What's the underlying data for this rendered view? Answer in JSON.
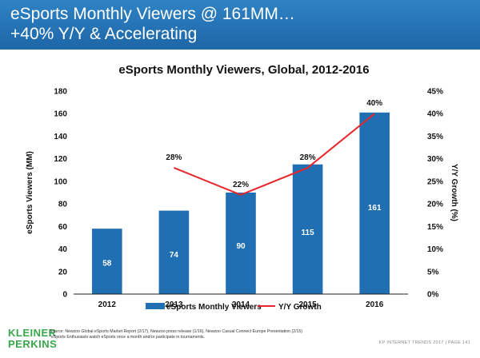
{
  "header": {
    "line1": "eSports Monthly Viewers @ 161MM…",
    "line2": "+40% Y/Y & Accelerating"
  },
  "footer": {
    "logo_line1": "KLEINER",
    "logo_line2": "PERKINS",
    "source_line1": "Source: Newzoo Global eSports Market Report (2/17), Newzoo press release (1/16), Newzoo Casual Connect Europe Presentation (2/15)",
    "source_line2": "*eSports Enthusiasts watch eSports once a month and/or participate in tournaments.",
    "page_label": "KP INTERNET TRENDS 2017  |  PAGE 141"
  },
  "colors": {
    "header": "#1f6fb2",
    "bar": "#1f6fb2",
    "line": "#e8252a",
    "logo": "#3aa64a"
  },
  "chart_data": {
    "type": "bar",
    "title": "eSports Monthly Viewers, Global, 2012-2016",
    "categories": [
      "2012",
      "2013",
      "2014",
      "2015",
      "2016"
    ],
    "series": [
      {
        "name": "eSports Monthly Viewers",
        "type": "bar",
        "axis": "left",
        "values": [
          58,
          74,
          90,
          115,
          161
        ],
        "labels": [
          "58",
          "74",
          "90",
          "115",
          "161"
        ]
      },
      {
        "name": "Y/Y Growth",
        "type": "line",
        "axis": "right",
        "x": [
          "2013",
          "2014",
          "2015",
          "2016"
        ],
        "values": [
          28,
          22,
          28,
          40
        ],
        "labels": [
          "28%",
          "22%",
          "28%",
          "40%"
        ]
      }
    ],
    "ylabel": "eSports Viewers (MM)",
    "ylim": [
      0,
      180
    ],
    "yticks": [
      "0",
      "20",
      "40",
      "60",
      "80",
      "100",
      "120",
      "140",
      "160",
      "180"
    ],
    "y2label": "Y/Y Growth (%)",
    "y2lim": [
      0,
      45
    ],
    "y2ticks": [
      "0%",
      "5%",
      "10%",
      "15%",
      "20%",
      "25%",
      "30%",
      "35%",
      "40%",
      "45%"
    ],
    "legend": "bottom",
    "grid": false
  }
}
